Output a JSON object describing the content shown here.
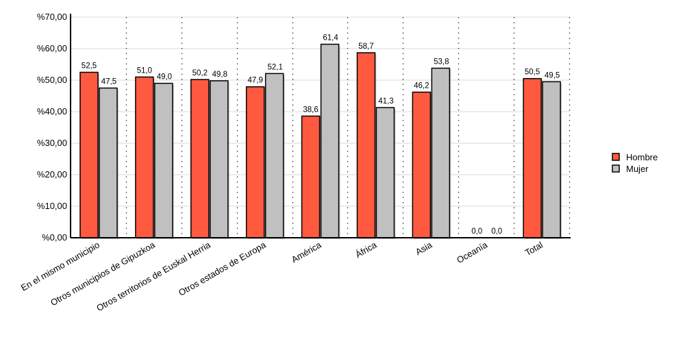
{
  "chart_data": {
    "type": "bar",
    "title": "",
    "xlabel": "",
    "ylabel": "",
    "ylim": [
      0,
      70
    ],
    "yticks": [
      "%0,00",
      "%10,00",
      "%20,00",
      "%30,00",
      "%40,00",
      "%50,00",
      "%60,00",
      "%70,00"
    ],
    "grid": true,
    "legend_position": "right",
    "categories": [
      "En el mismo municipio",
      "Otros municipios de Gipuzkoa",
      "Otros territorios de Euskal Herria",
      "Otros estados de Europa",
      "América",
      "África",
      "Asia",
      "Oceanía",
      "Total"
    ],
    "series": [
      {
        "name": "Hombre",
        "color": "#ff5a40",
        "values": [
          52.5,
          51.0,
          50.2,
          47.9,
          38.6,
          58.7,
          46.2,
          0.0,
          50.5
        ],
        "labels": [
          "52,5",
          "51,0",
          "50,2",
          "47,9",
          "38,6",
          "58,7",
          "46,2",
          "0,0",
          "50,5"
        ]
      },
      {
        "name": "Mujer",
        "color": "#c0c0c0",
        "values": [
          47.5,
          49.0,
          49.8,
          52.1,
          61.4,
          41.3,
          53.8,
          0.0,
          49.5
        ],
        "labels": [
          "47,5",
          "49,0",
          "49,8",
          "52,1",
          "61,4",
          "41,3",
          "53,8",
          "0,0",
          "49,5"
        ]
      }
    ]
  }
}
